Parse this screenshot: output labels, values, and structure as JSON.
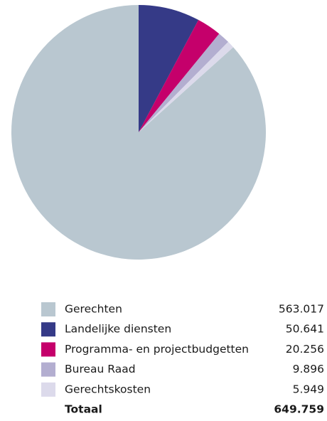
{
  "chart_data": {
    "type": "pie",
    "categories": [
      "Gerechten",
      "Landelijke diensten",
      "Programma- en projectbudgetten",
      "Bureau Raad",
      "Gerechtskosten"
    ],
    "values": [
      563017,
      50641,
      20256,
      9896,
      5949
    ],
    "value_labels": [
      "563.017",
      "50.641",
      "20.256",
      "9.896",
      "5.949"
    ],
    "colors": [
      "#b9c7d0",
      "#353a87",
      "#c5006b",
      "#b3aed0",
      "#dcdaeb"
    ],
    "total": {
      "name": "Totaal",
      "value": 649759,
      "label": "649.759"
    }
  }
}
